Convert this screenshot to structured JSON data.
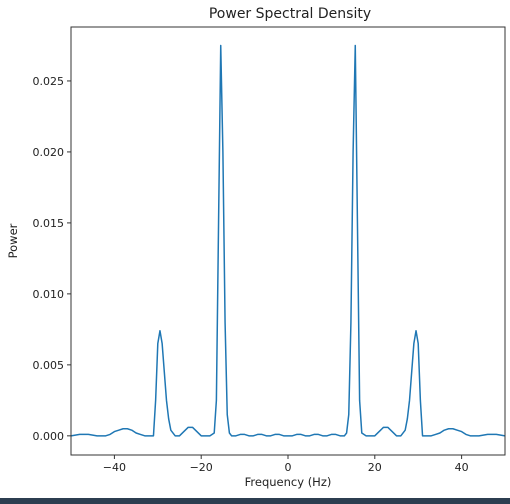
{
  "chart_data": {
    "type": "line",
    "title": "Power Spectral Density",
    "xlabel": "Frequency (Hz)",
    "ylabel": "Power",
    "xlim": [
      -50,
      50
    ],
    "ylim": [
      -0.00135,
      0.0288
    ],
    "xticks": [
      -40,
      -20,
      0,
      20,
      40
    ],
    "xtick_labels": [
      "−40",
      "−20",
      "0",
      "20",
      "40"
    ],
    "yticks": [
      0.0,
      0.005,
      0.01,
      0.015,
      0.02,
      0.025
    ],
    "ytick_labels": [
      "0.000",
      "0.005",
      "0.010",
      "0.015",
      "0.020",
      "0.025"
    ],
    "grid": false,
    "line_color": "#1f77b4",
    "series": [
      {
        "x": [
          -50,
          -48,
          -46,
          -44,
          -42,
          -41,
          -40,
          -39,
          -38,
          -37,
          -36,
          -35,
          -34,
          -33,
          -32,
          -31,
          -30.5,
          -30,
          -29.5,
          -29,
          -28.5,
          -28,
          -27.5,
          -27,
          -26,
          -25,
          -24,
          -23,
          -22,
          -21,
          -20,
          -19,
          -18,
          -17,
          -16.5,
          -16,
          -15.5,
          -15,
          -14.5,
          -14,
          -13.5,
          -13,
          -12,
          -11,
          -10,
          -9,
          -8,
          -7,
          -6,
          -5,
          -4,
          -3,
          -2,
          -1,
          0,
          1,
          2,
          3,
          4,
          5,
          6,
          7,
          8,
          9,
          10,
          11,
          12,
          13,
          13.5,
          14,
          14.5,
          15,
          15.5,
          16,
          16.5,
          17,
          18,
          19,
          20,
          21,
          22,
          23,
          24,
          25,
          26,
          27,
          27.5,
          28,
          28.5,
          29,
          29.5,
          30,
          30.5,
          31,
          32,
          33,
          34,
          35,
          36,
          37,
          38,
          39,
          40,
          41,
          42,
          44,
          46,
          48,
          50
        ],
        "y": [
          0.0,
          0.0001,
          0.0001,
          0.0,
          0.0,
          0.0001,
          0.0003,
          0.0004,
          0.0005,
          0.0005,
          0.0004,
          0.0002,
          0.0001,
          0.0,
          0.0,
          0.0,
          0.0025,
          0.0065,
          0.0074,
          0.0065,
          0.0045,
          0.0025,
          0.0012,
          0.0004,
          0.0,
          0.0,
          0.0003,
          0.0006,
          0.0006,
          0.0003,
          0.0,
          0.0,
          0.0,
          0.0002,
          0.0025,
          0.015,
          0.0275,
          0.02,
          0.008,
          0.0015,
          0.0002,
          0.0,
          0.0,
          0.0001,
          0.0001,
          0.0,
          0.0,
          0.0001,
          0.0001,
          0.0,
          0.0,
          0.0001,
          0.0001,
          0.0,
          0.0,
          0.0,
          0.0001,
          0.0001,
          0.0,
          0.0,
          0.0001,
          0.0001,
          0.0,
          0.0,
          0.0001,
          0.0001,
          0.0,
          0.0,
          0.0002,
          0.0015,
          0.008,
          0.02,
          0.0275,
          0.015,
          0.0025,
          0.0002,
          0.0,
          0.0,
          0.0,
          0.0003,
          0.0006,
          0.0006,
          0.0003,
          0.0,
          0.0,
          0.0004,
          0.0012,
          0.0025,
          0.0045,
          0.0065,
          0.0074,
          0.0065,
          0.0025,
          0.0,
          0.0,
          0.0,
          0.0001,
          0.0002,
          0.0004,
          0.0005,
          0.0005,
          0.0004,
          0.0003,
          0.0001,
          0.0,
          0.0,
          0.0001,
          0.0001,
          0.0
        ]
      }
    ]
  }
}
